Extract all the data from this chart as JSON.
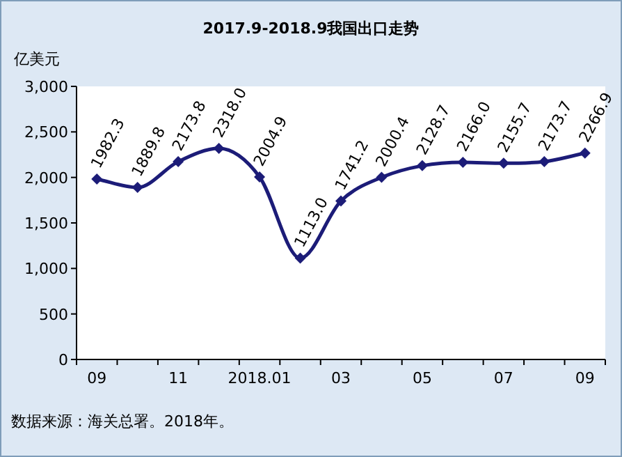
{
  "chart_data": {
    "type": "line",
    "title": "2017.9-2018.9我国出口走势",
    "ylabel": "亿美元",
    "categories": [
      "09",
      null,
      "11",
      null,
      "2018.01",
      null,
      "03",
      null,
      "05",
      null,
      "07",
      null,
      "09"
    ],
    "series": [
      {
        "color": "#1c1c78",
        "values": [
          1982.3,
          1889.8,
          2173.8,
          2318,
          2004.9,
          1113,
          1741.2,
          2000.4,
          2128.7,
          2166,
          2155.7,
          2173.7,
          2266.9
        ],
        "value_labels": [
          "1982.3",
          "1889.8",
          "2173.8",
          "2318.0",
          "2004.9",
          "1113.0",
          "1741.2",
          "2000.4",
          "2128.7",
          "2166.0",
          "2155.7",
          "2173.7",
          "2266.9"
        ]
      }
    ],
    "ylim": [
      0,
      3000
    ],
    "yticks": [
      {
        "value": 0,
        "label": "0"
      },
      {
        "value": 500,
        "label": "500"
      },
      {
        "value": 1000,
        "label": "1,000"
      },
      {
        "value": 1500,
        "label": "1,500"
      },
      {
        "value": 2000,
        "label": "2,000"
      },
      {
        "value": 2500,
        "label": "2,500"
      },
      {
        "value": 3000,
        "label": "3,000"
      }
    ],
    "grid": false,
    "marker": "diamond",
    "line_style": "solid",
    "annotations": [
      "数据来源：海关总署。2018年。"
    ]
  }
}
